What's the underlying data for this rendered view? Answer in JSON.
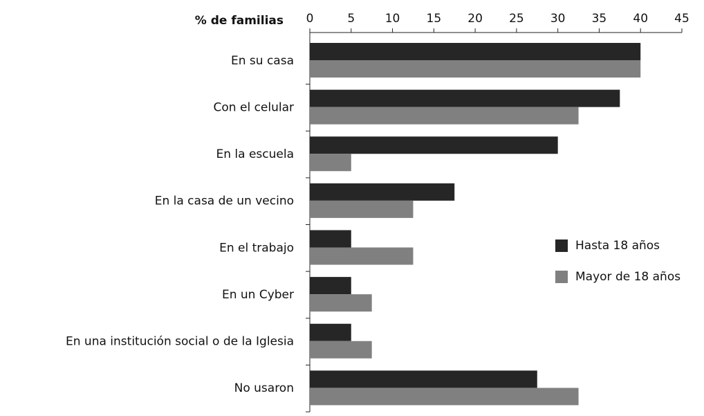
{
  "chart_data": {
    "type": "bar",
    "orientation": "horizontal",
    "xlabel": "% de familias",
    "categories": [
      "En su casa",
      "Con el celular",
      "En la escuela",
      "En la casa de un vecino",
      "En el trabajo",
      "En un Cyber",
      "En una institución social o de la Iglesia",
      "No usaron"
    ],
    "series": [
      {
        "name": "Hasta 18 años",
        "color": "#262626",
        "values": [
          40,
          37.5,
          30,
          17.5,
          5,
          5,
          5,
          27.5
        ]
      },
      {
        "name": "Mayor de 18 años",
        "color": "#808080",
        "values": [
          40,
          32.5,
          5,
          12.5,
          12.5,
          7.5,
          7.5,
          32.5
        ]
      }
    ],
    "xlim": [
      0,
      45
    ],
    "xticks": [
      0,
      5,
      10,
      15,
      20,
      25,
      30,
      35,
      40,
      45
    ],
    "grid": false,
    "legend": "right"
  }
}
